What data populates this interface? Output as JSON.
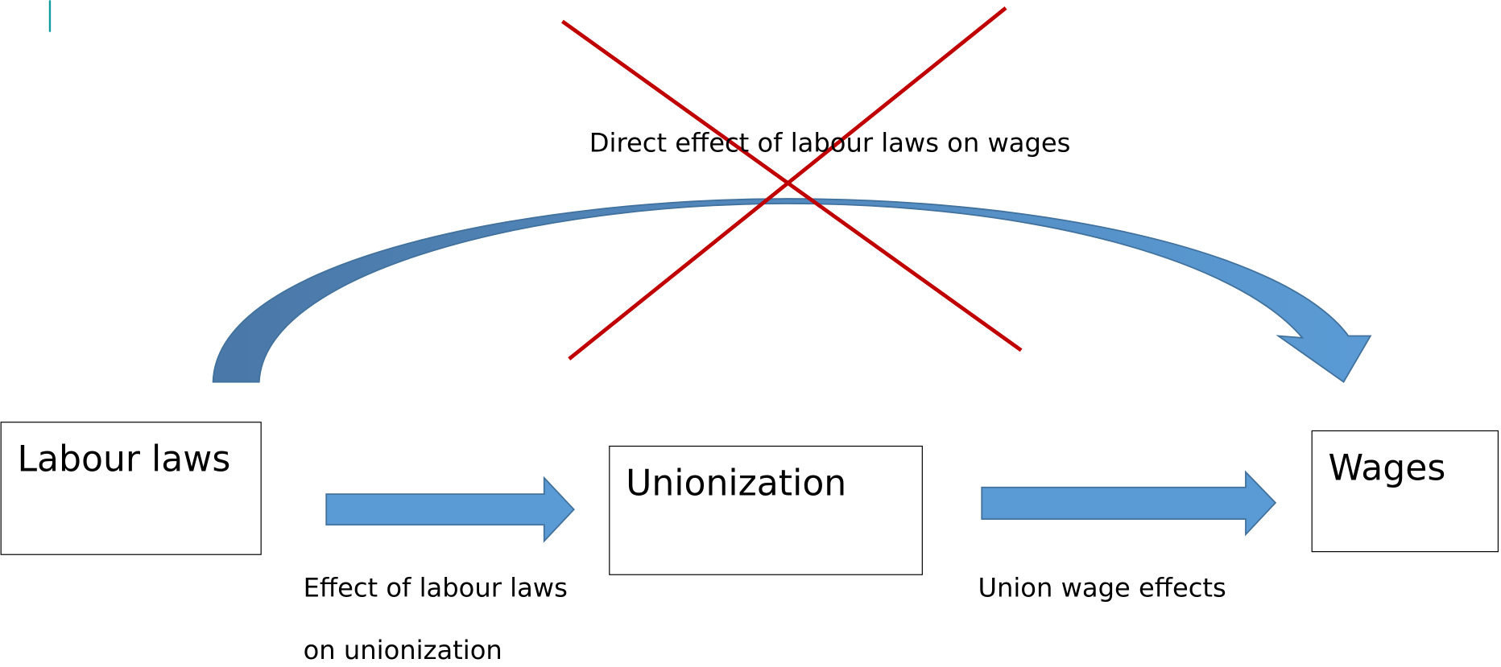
{
  "nodes": [
    {
      "label": "Labour laws"
    },
    {
      "label": "Unionization"
    },
    {
      "label": "Wages"
    }
  ],
  "edges": [
    {
      "label_lines": [
        "Effect of labour laws",
        "on unionization"
      ]
    },
    {
      "label_lines": [
        "Union wage effects"
      ]
    },
    {
      "label_lines": [
        "Direct effect of labour laws on wages"
      ]
    }
  ]
}
